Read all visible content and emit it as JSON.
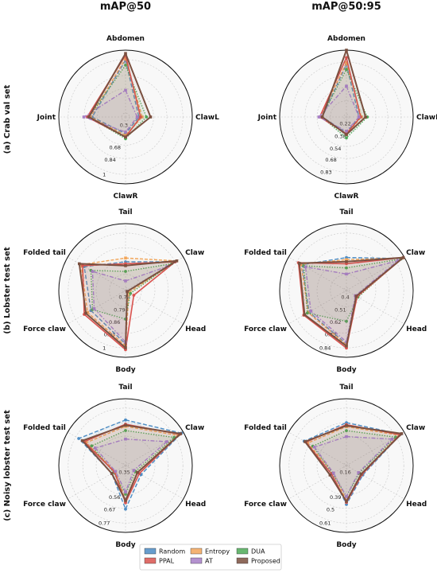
{
  "column_titles": [
    "mAP@50",
    "mAP@50:95"
  ],
  "row_titles": [
    "(a) Crab val set",
    "(b) Lobster test set",
    "(c) Noisy lobster test set"
  ],
  "legend": {
    "entries": [
      {
        "name": "Random",
        "color": "#4C8CC4"
      },
      {
        "name": "Entropy",
        "color": "#F2A65A"
      },
      {
        "name": "DUA",
        "color": "#4DAA57"
      },
      {
        "name": "PPAL",
        "color": "#D9534F"
      },
      {
        "name": "AT",
        "color": "#A77FC7"
      },
      {
        "name": "Proposed",
        "color": "#7B5040"
      }
    ]
  },
  "chart_data": [
    {
      "type": "radar",
      "title": "mAP@50",
      "row": "(a) Crab val set",
      "axes": [
        "Abdomen",
        "ClawL",
        "ClawR",
        "Joint"
      ],
      "rlim": [
        0.2,
        1.0
      ],
      "ticks": [
        "0.3",
        "0.68",
        "0.84",
        "1"
      ],
      "series": [
        {
          "name": "Random",
          "values": [
            0.88,
            0.36,
            0.4,
            0.6
          ]
        },
        {
          "name": "Entropy",
          "values": [
            0.9,
            0.4,
            0.42,
            0.62
          ]
        },
        {
          "name": "DUA",
          "values": [
            0.82,
            0.45,
            0.46,
            0.64
          ]
        },
        {
          "name": "PPAL",
          "values": [
            0.94,
            0.38,
            0.44,
            0.66
          ]
        },
        {
          "name": "AT",
          "values": [
            0.52,
            0.34,
            0.38,
            0.7
          ]
        },
        {
          "name": "Proposed",
          "values": [
            0.96,
            0.5,
            0.44,
            0.64
          ]
        }
      ]
    },
    {
      "type": "radar",
      "title": "mAP@50:95",
      "row": "(a) Crab val set",
      "axes": [
        "Abdomen",
        "ClawL",
        "ClawR",
        "Joint"
      ],
      "rlim": [
        0.15,
        0.95
      ],
      "ticks": [
        "0.22",
        "0.38",
        "0.54",
        "0.68",
        "0.83"
      ],
      "series": [
        {
          "name": "Random",
          "values": [
            0.78,
            0.3,
            0.34,
            0.44
          ]
        },
        {
          "name": "Entropy",
          "values": [
            0.8,
            0.33,
            0.36,
            0.46
          ]
        },
        {
          "name": "DUA",
          "values": [
            0.72,
            0.4,
            0.4,
            0.45
          ]
        },
        {
          "name": "PPAL",
          "values": [
            0.86,
            0.32,
            0.35,
            0.47
          ]
        },
        {
          "name": "AT",
          "values": [
            0.52,
            0.3,
            0.32,
            0.48
          ]
        },
        {
          "name": "Proposed",
          "values": [
            0.95,
            0.38,
            0.36,
            0.44
          ]
        }
      ]
    },
    {
      "type": "radar",
      "title": "mAP@50",
      "row": "(b) Lobster test set",
      "axes": [
        "Tail",
        "Claw",
        "Head",
        "Body",
        "Force claw",
        "Folded tail"
      ],
      "rlim": [
        0.65,
        1.0
      ],
      "ticks": [
        "0.72",
        "0.79",
        "0.86",
        "0.93",
        "1"
      ],
      "series": [
        {
          "name": "Random",
          "values": [
            0.8,
            0.95,
            0.66,
            0.93,
            0.86,
            0.9
          ]
        },
        {
          "name": "Entropy",
          "values": [
            0.82,
            0.96,
            0.67,
            0.94,
            0.88,
            0.92
          ]
        },
        {
          "name": "DUA",
          "values": [
            0.75,
            0.93,
            0.68,
            0.8,
            0.85,
            0.86
          ]
        },
        {
          "name": "PPAL",
          "values": [
            0.79,
            0.95,
            0.7,
            0.96,
            0.9,
            0.91
          ]
        },
        {
          "name": "AT",
          "values": [
            0.7,
            0.9,
            0.66,
            0.92,
            0.84,
            0.85
          ]
        },
        {
          "name": "Proposed",
          "values": [
            0.78,
            0.96,
            0.66,
            0.95,
            0.89,
            0.93
          ]
        }
      ]
    },
    {
      "type": "radar",
      "title": "mAP@50:95",
      "row": "(b) Lobster test set",
      "axes": [
        "Tail",
        "Claw",
        "Head",
        "Body",
        "Force claw",
        "Folded tail"
      ],
      "rlim": [
        0.3,
        0.95
      ],
      "ticks": [
        "0.4",
        "0.51",
        "0.62",
        "0.73",
        "0.84"
      ],
      "series": [
        {
          "name": "Random",
          "values": [
            0.62,
            0.92,
            0.42,
            0.82,
            0.72,
            0.8
          ]
        },
        {
          "name": "Entropy",
          "values": [
            0.6,
            0.93,
            0.41,
            0.83,
            0.73,
            0.81
          ]
        },
        {
          "name": "DUA",
          "values": [
            0.52,
            0.91,
            0.43,
            0.6,
            0.74,
            0.78
          ]
        },
        {
          "name": "PPAL",
          "values": [
            0.56,
            0.94,
            0.42,
            0.86,
            0.78,
            0.84
          ]
        },
        {
          "name": "AT",
          "values": [
            0.46,
            0.88,
            0.4,
            0.8,
            0.7,
            0.76
          ]
        },
        {
          "name": "Proposed",
          "values": [
            0.58,
            0.94,
            0.41,
            0.84,
            0.77,
            0.83
          ]
        }
      ]
    },
    {
      "type": "radar",
      "title": "mAP@50",
      "row": "(c) Noisy lobster test set",
      "axes": [
        "Tail",
        "Claw",
        "Head",
        "Body",
        "Force claw",
        "Folded tail"
      ],
      "rlim": [
        0.25,
        0.88
      ],
      "ticks": [
        "0.35",
        "0.56",
        "0.67",
        "0.77"
      ],
      "series": [
        {
          "name": "Random",
          "values": [
            0.68,
            0.86,
            0.42,
            0.66,
            0.4,
            0.76
          ]
        },
        {
          "name": "Entropy",
          "values": [
            0.62,
            0.82,
            0.38,
            0.58,
            0.36,
            0.68
          ]
        },
        {
          "name": "DUA",
          "values": [
            0.58,
            0.78,
            0.36,
            0.52,
            0.38,
            0.62
          ]
        },
        {
          "name": "PPAL",
          "values": [
            0.64,
            0.84,
            0.4,
            0.6,
            0.37,
            0.7
          ]
        },
        {
          "name": "AT",
          "values": [
            0.5,
            0.7,
            0.34,
            0.5,
            0.36,
            0.58
          ]
        },
        {
          "name": "Proposed",
          "values": [
            0.63,
            0.85,
            0.38,
            0.58,
            0.4,
            0.72
          ]
        }
      ]
    },
    {
      "type": "radar",
      "title": "mAP@50:95",
      "row": "(c) Noisy lobster test set",
      "axes": [
        "Tail",
        "Claw",
        "Head",
        "Body",
        "Force claw",
        "Folded tail"
      ],
      "rlim": [
        0.05,
        0.72
      ],
      "ticks": [
        "0.16",
        "0.39",
        "0.5",
        "0.61"
      ],
      "series": [
        {
          "name": "Random",
          "values": [
            0.48,
            0.68,
            0.24,
            0.44,
            0.22,
            0.54
          ]
        },
        {
          "name": "Entropy",
          "values": [
            0.44,
            0.66,
            0.22,
            0.4,
            0.2,
            0.5
          ]
        },
        {
          "name": "DUA",
          "values": [
            0.4,
            0.62,
            0.2,
            0.36,
            0.21,
            0.44
          ]
        },
        {
          "name": "PPAL",
          "values": [
            0.46,
            0.67,
            0.23,
            0.42,
            0.22,
            0.52
          ]
        },
        {
          "name": "AT",
          "values": [
            0.34,
            0.58,
            0.19,
            0.36,
            0.2,
            0.42
          ]
        },
        {
          "name": "Proposed",
          "values": [
            0.45,
            0.69,
            0.22,
            0.41,
            0.24,
            0.53
          ]
        }
      ]
    }
  ]
}
